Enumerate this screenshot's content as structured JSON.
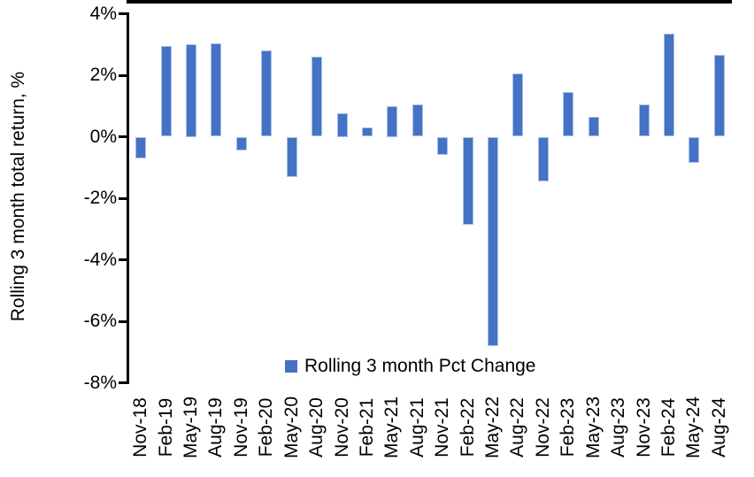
{
  "chart_data": {
    "type": "bar",
    "title": "",
    "xlabel": "",
    "ylabel": "Rolling 3 month total return, %",
    "legend": [
      "Rolling 3 month Pct Change"
    ],
    "legend_position": "bottom-center-inside",
    "grid": false,
    "ylim": [
      -8,
      4
    ],
    "ytick_values": [
      4,
      2,
      0,
      -2,
      -4,
      -6,
      -8
    ],
    "ytick_labels": [
      "4%",
      "2%",
      "0%",
      "-2%",
      "-4%",
      "-6%",
      "-8%"
    ],
    "categories": [
      "Nov-18",
      "Feb-19",
      "May-19",
      "Aug-19",
      "Nov-19",
      "Feb-20",
      "May-20",
      "Aug-20",
      "Nov-20",
      "Feb-21",
      "May-21",
      "Aug-21",
      "Nov-21",
      "Feb-22",
      "May-22",
      "Aug-22",
      "Nov-22",
      "Feb-23",
      "May-23",
      "Aug-23",
      "Nov-23",
      "Feb-24",
      "May-24",
      "Aug-24"
    ],
    "values": [
      -0.7,
      2.95,
      3.0,
      3.05,
      -0.45,
      2.8,
      -1.3,
      2.6,
      0.75,
      0.3,
      1.0,
      1.05,
      -0.6,
      -2.85,
      -6.8,
      2.05,
      -1.45,
      1.45,
      0.65,
      0.0,
      1.05,
      3.35,
      -0.85,
      2.65
    ],
    "colors": {
      "bar_fill": "#4472C4",
      "bar_border": "#A9C0E8",
      "axis": "#000000",
      "text": "#000000",
      "background": "#FFFFFF"
    }
  }
}
